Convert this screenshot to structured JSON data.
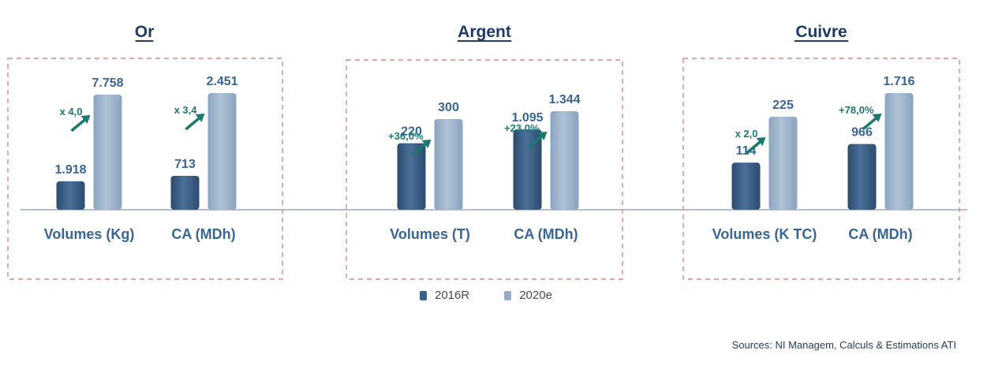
{
  "chart_data": [
    {
      "type": "bar",
      "title": "Or",
      "categories": [
        "Volumes (Kg)",
        "CA (MDh)"
      ],
      "series": [
        {
          "name": "2016R",
          "values": [
            1918,
            713
          ]
        },
        {
          "name": "2020e",
          "values": [
            7758,
            2451
          ]
        }
      ],
      "value_labels": {
        "2016R": [
          "1.918",
          "713"
        ],
        "2020e": [
          "7.758",
          "2.451"
        ]
      },
      "growth_labels": [
        "x 4,0",
        "x 3,4"
      ]
    },
    {
      "type": "bar",
      "title": "Argent",
      "categories": [
        "Volumes (T)",
        "CA (MDh)"
      ],
      "series": [
        {
          "name": "2016R",
          "values": [
            220,
            1095
          ]
        },
        {
          "name": "2020e",
          "values": [
            300,
            1344
          ]
        }
      ],
      "value_labels": {
        "2016R": [
          "220",
          "1.095"
        ],
        "2020e": [
          "300",
          "1.344"
        ]
      },
      "growth_labels": [
        "+36,0%",
        "+23,0%"
      ]
    },
    {
      "type": "bar",
      "title": "Cuivre",
      "categories": [
        "Volumes (K TC)",
        "CA (MDh)"
      ],
      "series": [
        {
          "name": "2016R",
          "values": [
            114,
            966
          ]
        },
        {
          "name": "2020e",
          "values": [
            225,
            1716
          ]
        }
      ],
      "value_labels": {
        "2016R": [
          "114",
          "966"
        ],
        "2020e": [
          "225",
          "1.716"
        ]
      },
      "growth_labels": [
        "x 2,0",
        "+78,0%"
      ]
    }
  ],
  "legend": {
    "items": [
      "2016R",
      "2020e"
    ]
  },
  "colors": {
    "series_2016": "#3d6289",
    "series_2020": "#94adc7",
    "arrow": "#1b7a6d",
    "title": "#1f3b63",
    "labels": "#3a6591",
    "frame": "#d98a82",
    "baseline": "#9aa7c2"
  },
  "source": "Sources: NI Managem, Calculs & Estimations ATI"
}
